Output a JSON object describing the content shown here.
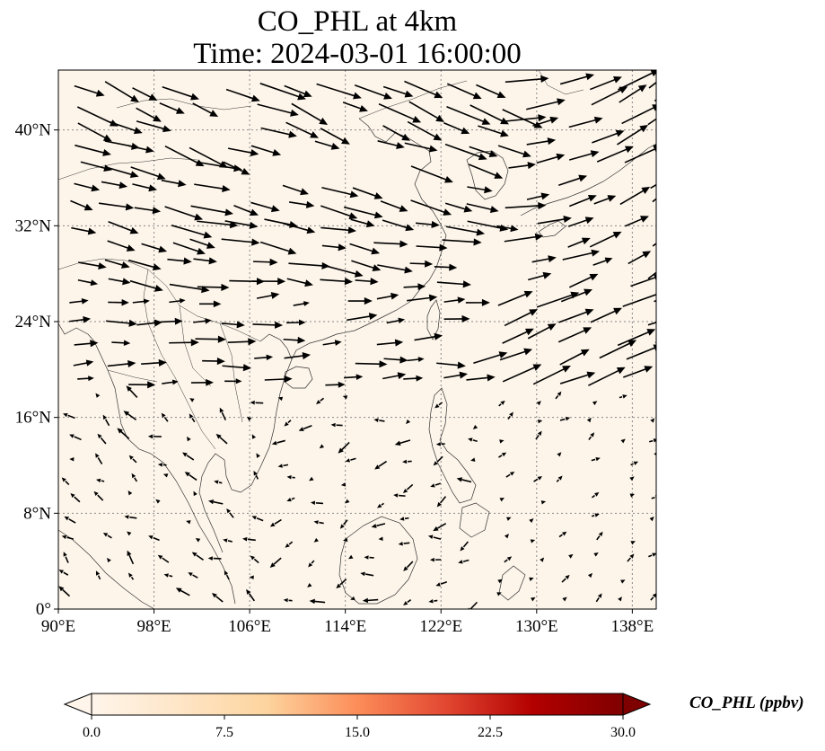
{
  "title": {
    "line1": "CO_PHL at 4km",
    "line2": "Time: 2024-03-01 16:00:00"
  },
  "map": {
    "lon_range": [
      90,
      140
    ],
    "lat_range": [
      0,
      45
    ],
    "background_color": "#fdf5ea",
    "coast_color": "#333333",
    "arrow_color": "#000000"
  },
  "x_ticks": [
    {
      "value": 90,
      "label": "90°E"
    },
    {
      "value": 98,
      "label": "98°E"
    },
    {
      "value": 106,
      "label": "106°E"
    },
    {
      "value": 114,
      "label": "114°E"
    },
    {
      "value": 122,
      "label": "122°E"
    },
    {
      "value": 130,
      "label": "130°E"
    },
    {
      "value": 138,
      "label": "138°E"
    }
  ],
  "y_ticks": [
    {
      "value": 0,
      "label": "0°"
    },
    {
      "value": 8,
      "label": "8°N"
    },
    {
      "value": 16,
      "label": "16°N"
    },
    {
      "value": 24,
      "label": "24°N"
    },
    {
      "value": 32,
      "label": "32°N"
    },
    {
      "value": 40,
      "label": "40°N"
    }
  ],
  "colorbar": {
    "label": "CO_PHL (ppbv)",
    "min": 0,
    "max": 30,
    "ticks": [
      "0.0",
      "7.5",
      "15.0",
      "22.5",
      "30.0"
    ],
    "colors": [
      "#fff5eb",
      "#fdd49e",
      "#fdbb84",
      "#fc8d59",
      "#e34a33",
      "#b30000",
      "#7f0000"
    ]
  }
}
